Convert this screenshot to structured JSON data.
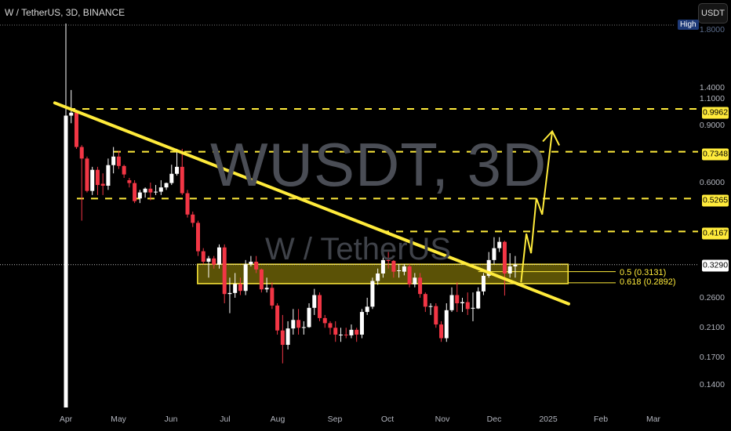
{
  "header": {
    "title": "W / TetherUS, 3D, BINANCE",
    "currency_button": "USDT",
    "high_tag": "High",
    "hidden_top_tick": "1.8000"
  },
  "watermark": {
    "symbol": "WUSDT, 3D",
    "pair": "W / TetherUS"
  },
  "colors": {
    "background": "#000000",
    "up": "#ffffff",
    "down": "#f23645",
    "drawing": "#ffeb3b",
    "zone_fill": "#7a6d08"
  },
  "chart_data": {
    "type": "candlestick",
    "scale": "log",
    "grid": false,
    "y_ticks": [
      "1.4000",
      "1.1000",
      "0.9000",
      "0.6000",
      "0.2600",
      "0.2100",
      "0.1700",
      "0.1400"
    ],
    "x_ticks": [
      "Apr",
      "May",
      "Jun",
      "Jul",
      "Aug",
      "Sep",
      "Oct",
      "Nov",
      "Dec",
      "2025",
      "Feb",
      "Mar"
    ],
    "current_price": "0.3290",
    "levels": [
      "0.9962",
      "0.7348",
      "0.5265",
      "0.4167"
    ],
    "fib_labels": [
      "0.5 (0.3131)",
      "0.618 (0.2892)"
    ],
    "fib_values": [
      0.3131,
      0.2892
    ],
    "zone": {
      "top": 0.33,
      "bottom": 0.2875
    },
    "trendline": [
      [
        -2.1,
        1.04
      ],
      [
        95.1,
        0.249
      ]
    ],
    "projection_path": [
      [
        86.1,
        0.29
      ],
      [
        87.1,
        0.41
      ],
      [
        88.0,
        0.357
      ],
      [
        89.0,
        0.528
      ],
      [
        90.1,
        0.47
      ],
      [
        92.0,
        0.85
      ]
    ],
    "ohlc": [
      [
        0.119,
        1.83,
        0.119,
        0.95
      ],
      [
        0.95,
        1.14,
        0.9,
        0.97
      ],
      [
        0.97,
        0.99,
        0.75,
        0.76
      ],
      [
        0.76,
        0.77,
        0.45,
        0.7
      ],
      [
        0.7,
        0.71,
        0.55,
        0.556
      ],
      [
        0.556,
        0.66,
        0.54,
        0.646
      ],
      [
        0.646,
        0.66,
        0.54,
        0.58
      ],
      [
        0.585,
        0.63,
        0.54,
        0.577
      ],
      [
        0.577,
        0.7,
        0.56,
        0.668
      ],
      [
        0.668,
        0.76,
        0.63,
        0.71
      ],
      [
        0.71,
        0.74,
        0.65,
        0.664
      ],
      [
        0.664,
        0.67,
        0.61,
        0.625
      ],
      [
        0.6,
        0.61,
        0.57,
        0.588
      ],
      [
        0.588,
        0.6,
        0.51,
        0.517
      ],
      [
        0.527,
        0.56,
        0.51,
        0.55
      ],
      [
        0.55,
        0.57,
        0.53,
        0.565
      ],
      [
        0.565,
        0.59,
        0.52,
        0.55
      ],
      [
        0.55,
        0.58,
        0.54,
        0.553
      ],
      [
        0.553,
        0.6,
        0.54,
        0.57
      ],
      [
        0.57,
        0.59,
        0.56,
        0.588
      ],
      [
        0.588,
        0.67,
        0.58,
        0.628
      ],
      [
        0.628,
        0.75,
        0.62,
        0.66
      ],
      [
        0.66,
        0.75,
        0.54,
        0.547
      ],
      [
        0.547,
        0.56,
        0.46,
        0.47
      ],
      [
        0.47,
        0.48,
        0.43,
        0.443
      ],
      [
        0.443,
        0.45,
        0.35,
        0.362
      ],
      [
        0.362,
        0.37,
        0.33,
        0.336
      ],
      [
        0.336,
        0.35,
        0.3,
        0.344
      ],
      [
        0.344,
        0.35,
        0.32,
        0.329
      ],
      [
        0.329,
        0.38,
        0.32,
        0.372
      ],
      [
        0.372,
        0.38,
        0.25,
        0.267
      ],
      [
        0.267,
        0.3,
        0.233,
        0.269
      ],
      [
        0.269,
        0.31,
        0.26,
        0.287
      ],
      [
        0.287,
        0.3,
        0.265,
        0.273
      ],
      [
        0.273,
        0.34,
        0.265,
        0.33
      ],
      [
        0.33,
        0.35,
        0.325,
        0.336
      ],
      [
        0.336,
        0.35,
        0.31,
        0.318
      ],
      [
        0.318,
        0.32,
        0.27,
        0.276
      ],
      [
        0.276,
        0.3,
        0.27,
        0.279
      ],
      [
        0.279,
        0.29,
        0.24,
        0.246
      ],
      [
        0.246,
        0.25,
        0.2,
        0.206
      ],
      [
        0.206,
        0.23,
        0.163,
        0.186
      ],
      [
        0.186,
        0.22,
        0.18,
        0.209
      ],
      [
        0.209,
        0.24,
        0.2,
        0.222
      ],
      [
        0.222,
        0.24,
        0.2,
        0.21
      ],
      [
        0.21,
        0.22,
        0.2,
        0.211
      ],
      [
        0.211,
        0.25,
        0.21,
        0.242
      ],
      [
        0.242,
        0.277,
        0.23,
        0.265
      ],
      [
        0.265,
        0.27,
        0.22,
        0.225
      ],
      [
        0.225,
        0.23,
        0.21,
        0.217
      ],
      [
        0.217,
        0.22,
        0.2,
        0.21
      ],
      [
        0.21,
        0.22,
        0.19,
        0.2
      ],
      [
        0.199,
        0.21,
        0.19,
        0.2
      ],
      [
        0.2,
        0.21,
        0.195,
        0.199
      ],
      [
        0.199,
        0.215,
        0.195,
        0.207
      ],
      [
        0.207,
        0.21,
        0.19,
        0.2
      ],
      [
        0.2,
        0.24,
        0.195,
        0.235
      ],
      [
        0.235,
        0.26,
        0.23,
        0.244
      ],
      [
        0.244,
        0.3,
        0.24,
        0.293
      ],
      [
        0.293,
        0.32,
        0.285,
        0.309
      ],
      [
        0.309,
        0.36,
        0.3,
        0.34
      ],
      [
        0.34,
        0.36,
        0.32,
        0.338
      ],
      [
        0.338,
        0.34,
        0.3,
        0.313
      ],
      [
        0.315,
        0.33,
        0.3,
        0.316
      ],
      [
        0.313,
        0.33,
        0.305,
        0.325
      ],
      [
        0.325,
        0.33,
        0.28,
        0.286
      ],
      [
        0.286,
        0.31,
        0.28,
        0.3
      ],
      [
        0.3,
        0.31,
        0.26,
        0.267
      ],
      [
        0.267,
        0.27,
        0.235,
        0.244
      ],
      [
        0.244,
        0.25,
        0.23,
        0.245
      ],
      [
        0.245,
        0.25,
        0.21,
        0.215
      ],
      [
        0.215,
        0.22,
        0.19,
        0.195
      ],
      [
        0.195,
        0.25,
        0.19,
        0.238
      ],
      [
        0.238,
        0.28,
        0.235,
        0.265
      ],
      [
        0.265,
        0.29,
        0.235,
        0.25
      ],
      [
        0.25,
        0.26,
        0.235,
        0.252
      ],
      [
        0.252,
        0.27,
        0.23,
        0.24
      ],
      [
        0.241,
        0.27,
        0.22,
        0.242
      ],
      [
        0.241,
        0.28,
        0.24,
        0.272
      ],
      [
        0.272,
        0.31,
        0.265,
        0.304
      ],
      [
        0.304,
        0.36,
        0.3,
        0.34
      ],
      [
        0.34,
        0.4,
        0.33,
        0.37
      ],
      [
        0.37,
        0.4,
        0.36,
        0.387
      ],
      [
        0.387,
        0.39,
        0.264,
        0.309
      ],
      [
        0.309,
        0.357,
        0.3,
        0.325
      ],
      [
        0.325,
        0.35,
        0.3,
        0.329
      ]
    ]
  }
}
